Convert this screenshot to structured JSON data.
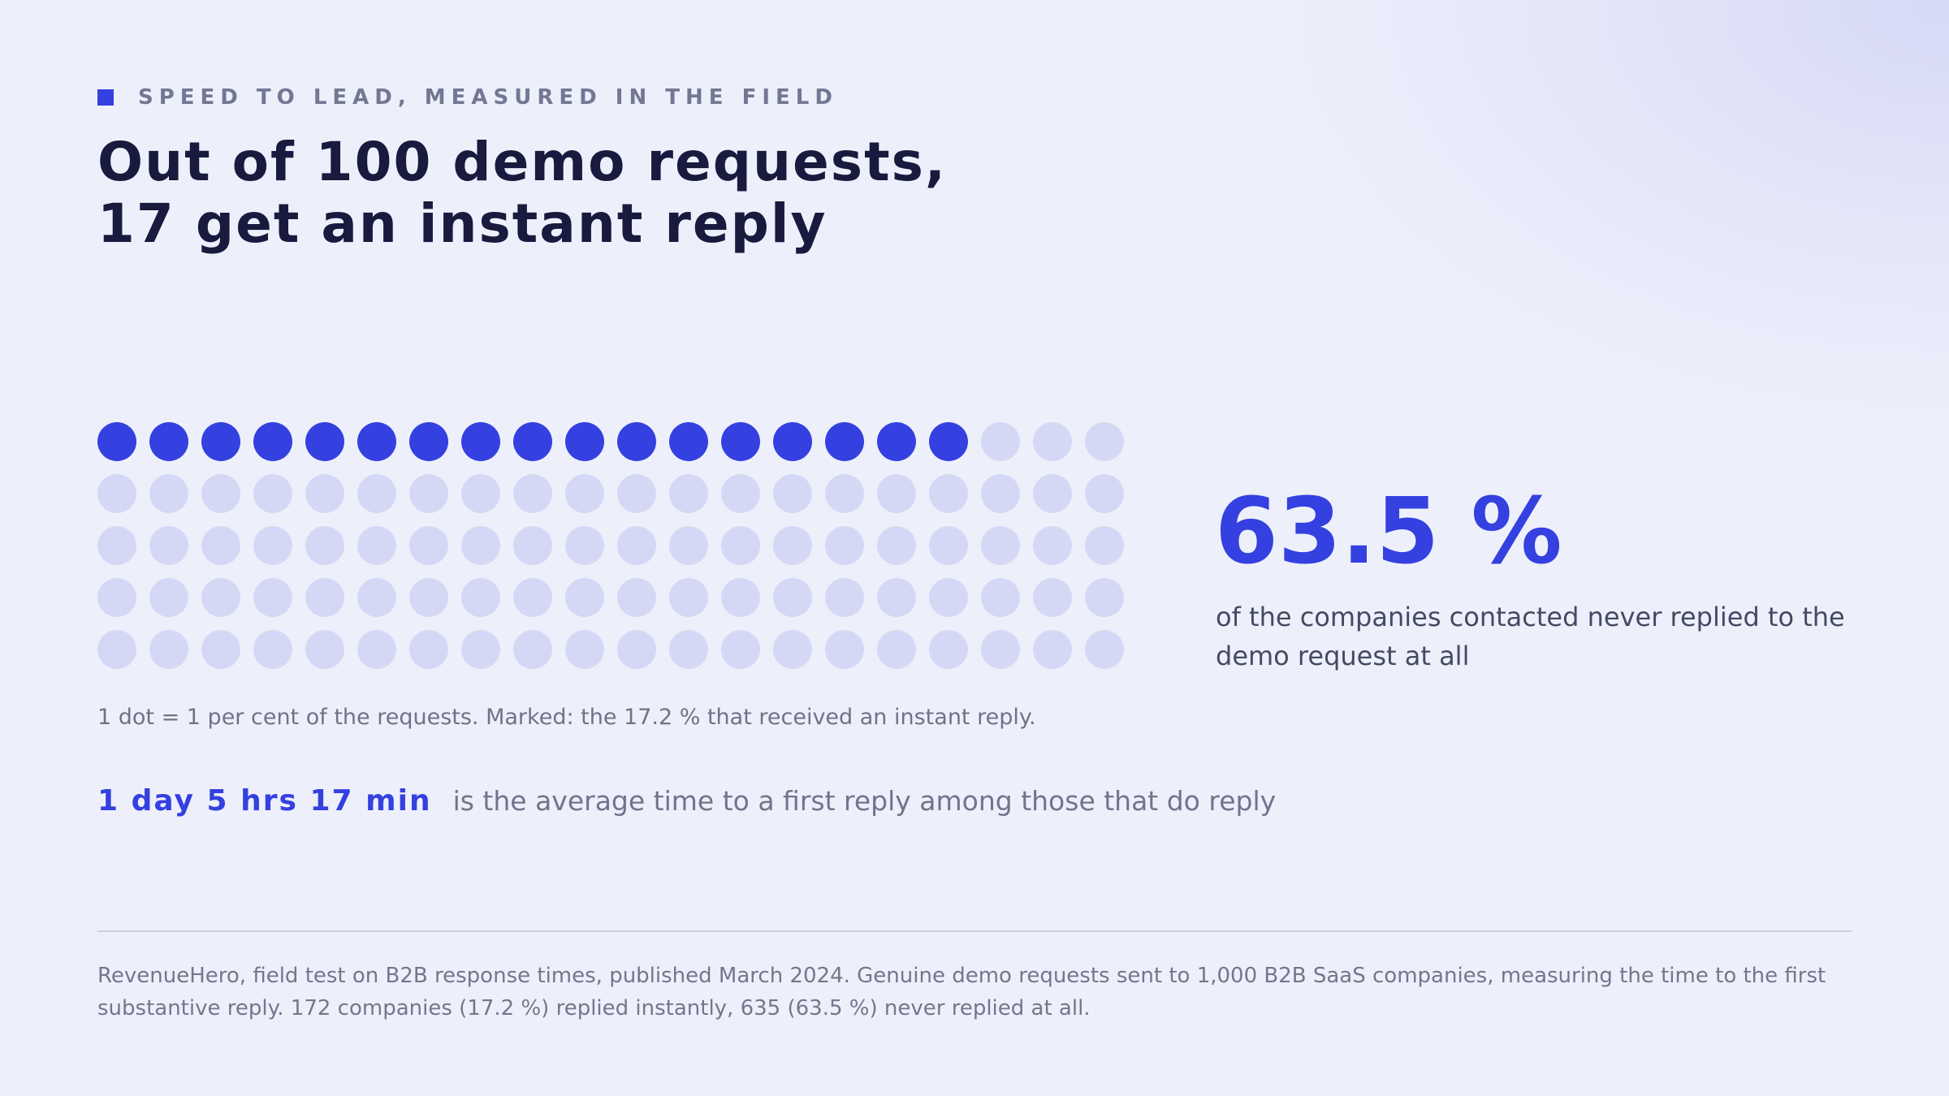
{
  "eyebrow": "SPEED TO LEAD, MEASURED IN THE FIELD",
  "headline": {
    "line1": "Out of 100 demo requests,",
    "line2": "17 get an instant reply"
  },
  "chart_data": {
    "type": "waffle",
    "total": 100,
    "rows": 5,
    "cols": 20,
    "highlighted": 17,
    "highlight_color": "#3540e0",
    "base_color": "#d5d8f5",
    "note": "1 dot = 1 per cent of the requests. Marked: the 17.2 % that received an instant reply."
  },
  "stat": {
    "value": "63.5 %",
    "caption": "of the companies contacted never replied to the demo request at all"
  },
  "average": {
    "value": "1 day 5 hrs 17 min",
    "text": "is the average time to a first reply among those that do reply"
  },
  "source": "RevenueHero, field test on B2B response times, published March 2024. Genuine demo requests sent to 1,000 B2B SaaS companies, measuring the time to the first substantive reply. 172 companies (17.2 %) replied instantly, 635 (63.5 %) never replied at all.",
  "colors": {
    "accent": "#3540e0",
    "text_dark": "#181a3e",
    "muted": "#70748c"
  }
}
